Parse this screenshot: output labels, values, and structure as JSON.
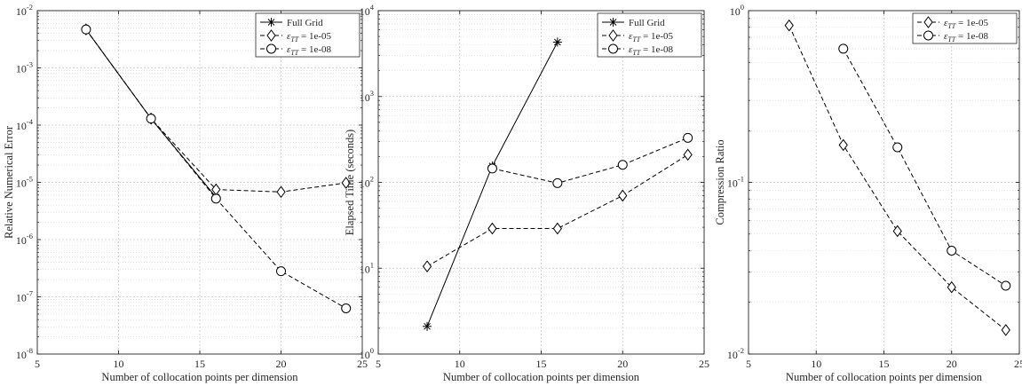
{
  "chart_data": [
    {
      "type": "line",
      "ylabel": "Relative Numerical Error",
      "xlabel": "Number of collocation points per dimension",
      "yscale": "log",
      "xlim": [
        5,
        25
      ],
      "ylim": [
        1e-08,
        0.01
      ],
      "xticks": [
        "5",
        "10",
        "15",
        "20",
        "25"
      ],
      "ytick_exponents": [
        "-8",
        "-7",
        "-6",
        "-5",
        "-4",
        "-3",
        "-2"
      ],
      "grid": true,
      "legend_position": "top-right",
      "series": [
        {
          "name": "Full Grid",
          "marker": "asterisk",
          "linestyle": "solid",
          "x": [
            8,
            12,
            16
          ],
          "y": [
            0.0047,
            0.00013,
            5.5e-06
          ]
        },
        {
          "name": "ε_TT = 1e-05",
          "marker": "diamond",
          "linestyle": "dashed",
          "x": [
            8,
            12,
            16,
            20,
            24
          ],
          "y": [
            0.0047,
            0.00013,
            7.5e-06,
            6.8e-06,
            9.8e-06
          ]
        },
        {
          "name": "ε_TT = 1e-08",
          "marker": "circle",
          "linestyle": "dashed",
          "x": [
            8,
            12,
            16,
            20,
            24
          ],
          "y": [
            0.0047,
            0.00013,
            5.2e-06,
            2.8e-07,
            6.3e-08
          ]
        }
      ]
    },
    {
      "type": "line",
      "ylabel": "Elapsed Time (seconds)",
      "xlabel": "Number of collocation points per dimension",
      "yscale": "log",
      "xlim": [
        5,
        25
      ],
      "ylim": [
        1,
        10000
      ],
      "xticks": [
        "5",
        "10",
        "15",
        "20",
        "25"
      ],
      "ytick_exponents": [
        "0",
        "1",
        "2",
        "3",
        "4"
      ],
      "grid": true,
      "legend_position": "top-right",
      "series": [
        {
          "name": "Full Grid",
          "marker": "asterisk",
          "linestyle": "solid",
          "x": [
            8,
            12,
            16
          ],
          "y": [
            2.1,
            155,
            4300
          ]
        },
        {
          "name": "ε_TT = 1e-05",
          "marker": "diamond",
          "linestyle": "dashed",
          "x": [
            8,
            12,
            16,
            20,
            24
          ],
          "y": [
            10.5,
            29,
            29,
            70,
            210
          ]
        },
        {
          "name": "ε_TT = 1e-08",
          "marker": "circle",
          "linestyle": "dashed",
          "x": [
            12,
            16,
            20,
            24
          ],
          "y": [
            145,
            98,
            160,
            330
          ]
        }
      ]
    },
    {
      "type": "line",
      "ylabel": "Compression Ratio",
      "xlabel": "Number of collocation points per dimension",
      "yscale": "log",
      "xlim": [
        5,
        25
      ],
      "ylim": [
        0.01,
        1
      ],
      "xticks": [
        "5",
        "10",
        "15",
        "20",
        "25"
      ],
      "ytick_exponents": [
        "-2",
        "-1",
        "0"
      ],
      "grid": true,
      "legend_position": "top-right",
      "series": [
        {
          "name": "ε_TT = 1e-05",
          "marker": "diamond",
          "linestyle": "dashed",
          "x": [
            8,
            12,
            16,
            20,
            24
          ],
          "y": [
            0.82,
            0.165,
            0.052,
            0.0245,
            0.0138
          ]
        },
        {
          "name": "ε_TT = 1e-08",
          "marker": "circle",
          "linestyle": "dashed",
          "x": [
            12,
            16,
            20,
            24
          ],
          "y": [
            0.6,
            0.16,
            0.04,
            0.025
          ]
        }
      ]
    }
  ]
}
